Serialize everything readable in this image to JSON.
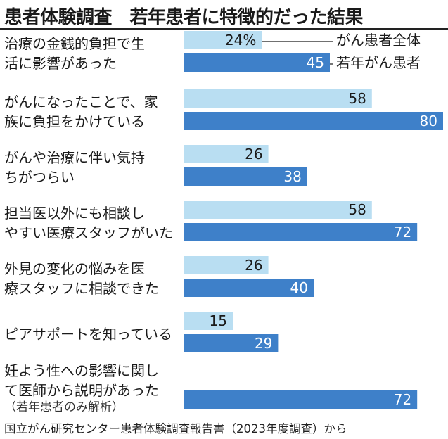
{
  "title": "患者体験調査　若年患者に特徴的だった結果",
  "source": "国立がん研究センター患者体験調査報告書（2023年度調査）から",
  "chart_data": {
    "type": "bar",
    "orientation": "horizontal",
    "title": "患者体験調査　若年患者に特徴的だった結果",
    "value_suffix_first": "%",
    "series": [
      {
        "name": "がん患者全体",
        "color": "#b9def2",
        "values": [
          24,
          58,
          26,
          58,
          26,
          15,
          null
        ]
      },
      {
        "name": "若年がん患者",
        "color": "#3e80c9",
        "values": [
          45,
          80,
          38,
          72,
          40,
          29,
          72
        ]
      }
    ],
    "categories": [
      {
        "lines": [
          "治療の金銭的負担で生",
          "活に影響があった"
        ]
      },
      {
        "lines": [
          "がんになったことで、家",
          "族に負担をかけている"
        ]
      },
      {
        "lines": [
          "がんや治療に伴い気持",
          "ちがつらい"
        ]
      },
      {
        "lines": [
          "担当医以外にも相談し",
          "やすい医療スタッフがいた"
        ]
      },
      {
        "lines": [
          "外見の変化の悩みを医",
          "療スタッフに相談できた"
        ]
      },
      {
        "lines": [
          "ピアサポートを知っている"
        ]
      },
      {
        "lines": [
          "妊よう性への影響に関し",
          "て医師から説明があった"
        ],
        "note": "（若年患者のみ解析）"
      }
    ],
    "xlim": [
      0,
      80
    ],
    "legend": "top-right"
  }
}
